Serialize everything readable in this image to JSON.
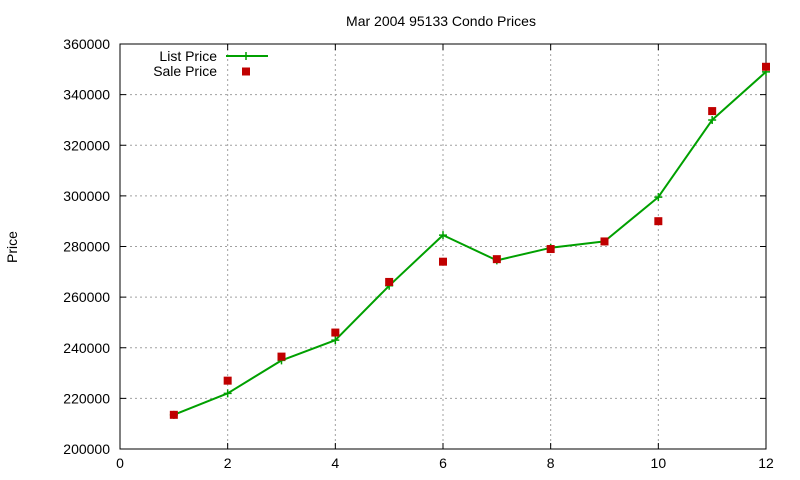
{
  "chart_data": {
    "type": "line",
    "title": "Mar 2004 95133 Condo Prices",
    "xlabel": "",
    "ylabel": "Price",
    "xlim": [
      0,
      12
    ],
    "ylim": [
      200000,
      360000
    ],
    "xticks": [
      0,
      2,
      4,
      6,
      8,
      10,
      12
    ],
    "yticks": [
      200000,
      220000,
      240000,
      260000,
      280000,
      300000,
      320000,
      340000,
      360000
    ],
    "grid": true,
    "legend_position": "top-left",
    "series": [
      {
        "name": "List Price",
        "style": "line-plus",
        "color": "#00a000",
        "x": [
          1,
          2,
          3,
          4,
          5,
          6,
          7,
          8,
          9,
          10,
          11,
          12
        ],
        "values": [
          213500,
          222000,
          235000,
          243000,
          264500,
          284500,
          274500,
          279500,
          282000,
          299500,
          330000,
          349000
        ]
      },
      {
        "name": "Sale Price",
        "style": "square-points",
        "color": "#c00000",
        "x": [
          1,
          2,
          3,
          4,
          5,
          6,
          7,
          8,
          9,
          10,
          11,
          12
        ],
        "values": [
          213500,
          227000,
          236500,
          246000,
          266000,
          274000,
          275000,
          279000,
          282000,
          290000,
          333500,
          351000
        ]
      }
    ]
  }
}
